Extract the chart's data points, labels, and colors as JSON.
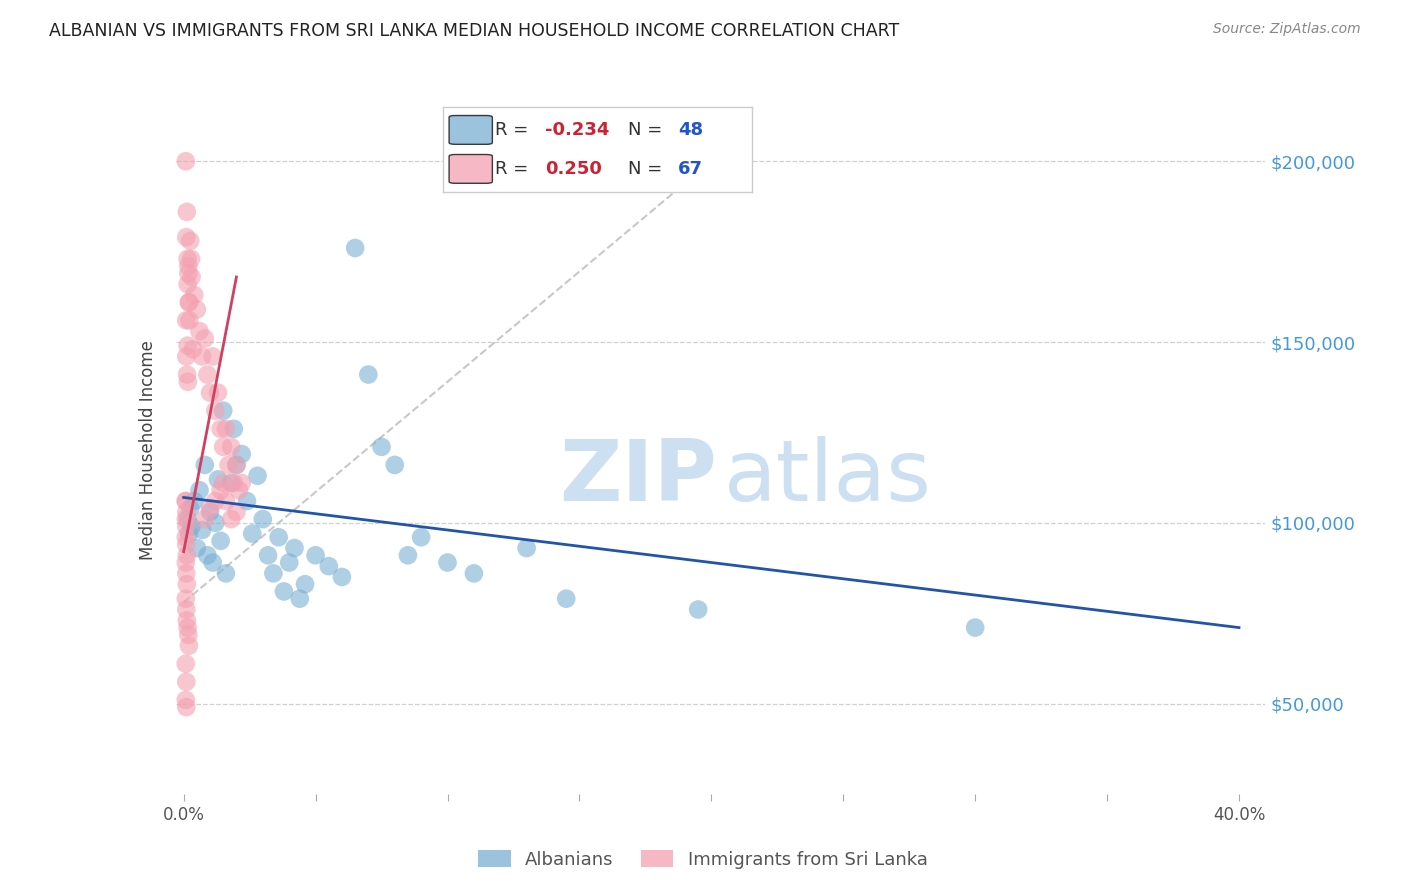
{
  "title": "ALBANIAN VS IMMIGRANTS FROM SRI LANKA MEDIAN HOUSEHOLD INCOME CORRELATION CHART",
  "source": "Source: ZipAtlas.com",
  "ylabel": "Median Household Income",
  "ytick_labels": [
    "$50,000",
    "$100,000",
    "$150,000",
    "$200,000"
  ],
  "ytick_values": [
    50000,
    100000,
    150000,
    200000
  ],
  "ylim": [
    25000,
    215000
  ],
  "xlim": [
    -0.003,
    0.41
  ],
  "legend_blue_R": "-0.234",
  "legend_blue_N": "48",
  "legend_pink_R": "0.250",
  "legend_pink_N": "67",
  "label_blue": "Albanians",
  "label_pink": "Immigrants from Sri Lanka",
  "blue_color": "#7bafd4",
  "pink_color": "#f4a0b0",
  "trendline_blue_color": "#2255aa",
  "trendline_pink_color": "#d04060",
  "trendline_gray_color": "#c8c8c8",
  "blue_scatter": [
    [
      0.0015,
      101000
    ],
    [
      0.002,
      97000
    ],
    [
      0.0025,
      104000
    ],
    [
      0.003,
      99000
    ],
    [
      0.004,
      106000
    ],
    [
      0.005,
      93000
    ],
    [
      0.006,
      109000
    ],
    [
      0.007,
      98000
    ],
    [
      0.008,
      116000
    ],
    [
      0.009,
      91000
    ],
    [
      0.01,
      103000
    ],
    [
      0.011,
      89000
    ],
    [
      0.012,
      100000
    ],
    [
      0.013,
      112000
    ],
    [
      0.014,
      95000
    ],
    [
      0.015,
      131000
    ],
    [
      0.016,
      86000
    ],
    [
      0.018,
      111000
    ],
    [
      0.019,
      126000
    ],
    [
      0.02,
      116000
    ],
    [
      0.022,
      119000
    ],
    [
      0.024,
      106000
    ],
    [
      0.026,
      97000
    ],
    [
      0.028,
      113000
    ],
    [
      0.03,
      101000
    ],
    [
      0.032,
      91000
    ],
    [
      0.034,
      86000
    ],
    [
      0.036,
      96000
    ],
    [
      0.038,
      81000
    ],
    [
      0.04,
      89000
    ],
    [
      0.042,
      93000
    ],
    [
      0.044,
      79000
    ],
    [
      0.046,
      83000
    ],
    [
      0.05,
      91000
    ],
    [
      0.055,
      88000
    ],
    [
      0.06,
      85000
    ],
    [
      0.065,
      176000
    ],
    [
      0.07,
      141000
    ],
    [
      0.075,
      121000
    ],
    [
      0.08,
      116000
    ],
    [
      0.085,
      91000
    ],
    [
      0.09,
      96000
    ],
    [
      0.1,
      89000
    ],
    [
      0.11,
      86000
    ],
    [
      0.13,
      93000
    ],
    [
      0.145,
      79000
    ],
    [
      0.195,
      76000
    ],
    [
      0.3,
      71000
    ]
  ],
  "pink_scatter": [
    [
      0.0008,
      200000
    ],
    [
      0.0012,
      186000
    ],
    [
      0.0015,
      166000
    ],
    [
      0.0018,
      171000
    ],
    [
      0.002,
      161000
    ],
    [
      0.0022,
      156000
    ],
    [
      0.0025,
      178000
    ],
    [
      0.0028,
      173000
    ],
    [
      0.003,
      168000
    ],
    [
      0.004,
      163000
    ],
    [
      0.0035,
      148000
    ],
    [
      0.005,
      159000
    ],
    [
      0.006,
      153000
    ],
    [
      0.007,
      146000
    ],
    [
      0.008,
      151000
    ],
    [
      0.009,
      141000
    ],
    [
      0.01,
      136000
    ],
    [
      0.011,
      146000
    ],
    [
      0.012,
      131000
    ],
    [
      0.013,
      136000
    ],
    [
      0.014,
      126000
    ],
    [
      0.015,
      121000
    ],
    [
      0.016,
      126000
    ],
    [
      0.017,
      116000
    ],
    [
      0.018,
      121000
    ],
    [
      0.019,
      111000
    ],
    [
      0.02,
      116000
    ],
    [
      0.021,
      109000
    ],
    [
      0.022,
      111000
    ],
    [
      0.001,
      156000
    ],
    [
      0.0015,
      149000
    ],
    [
      0.001,
      146000
    ],
    [
      0.0013,
      141000
    ],
    [
      0.0016,
      139000
    ],
    [
      0.0008,
      106000
    ],
    [
      0.001,
      103000
    ],
    [
      0.0008,
      101000
    ],
    [
      0.001,
      99000
    ],
    [
      0.0008,
      96000
    ],
    [
      0.001,
      94000
    ],
    [
      0.0012,
      91000
    ],
    [
      0.0008,
      89000
    ],
    [
      0.001,
      86000
    ],
    [
      0.0012,
      83000
    ],
    [
      0.0008,
      79000
    ],
    [
      0.001,
      76000
    ],
    [
      0.0012,
      73000
    ],
    [
      0.0015,
      71000
    ],
    [
      0.0018,
      69000
    ],
    [
      0.002,
      66000
    ],
    [
      0.0008,
      106000
    ],
    [
      0.008,
      101000
    ],
    [
      0.01,
      104000
    ],
    [
      0.012,
      106000
    ],
    [
      0.014,
      109000
    ],
    [
      0.015,
      111000
    ],
    [
      0.016,
      106000
    ],
    [
      0.018,
      101000
    ],
    [
      0.02,
      103000
    ],
    [
      0.0008,
      61000
    ],
    [
      0.001,
      56000
    ],
    [
      0.0008,
      51000
    ],
    [
      0.001,
      49000
    ],
    [
      0.001,
      179000
    ],
    [
      0.0015,
      173000
    ],
    [
      0.0018,
      169000
    ],
    [
      0.002,
      161000
    ]
  ],
  "blue_trendline_x": [
    0.0,
    0.4
  ],
  "blue_trendline_y": [
    107000,
    71000
  ],
  "pink_trendline_x": [
    0.0,
    0.02
  ],
  "pink_trendline_y": [
    92000,
    168000
  ],
  "gray_trendline_x": [
    0.0,
    0.2
  ],
  "gray_trendline_y": [
    78000,
    200000
  ]
}
